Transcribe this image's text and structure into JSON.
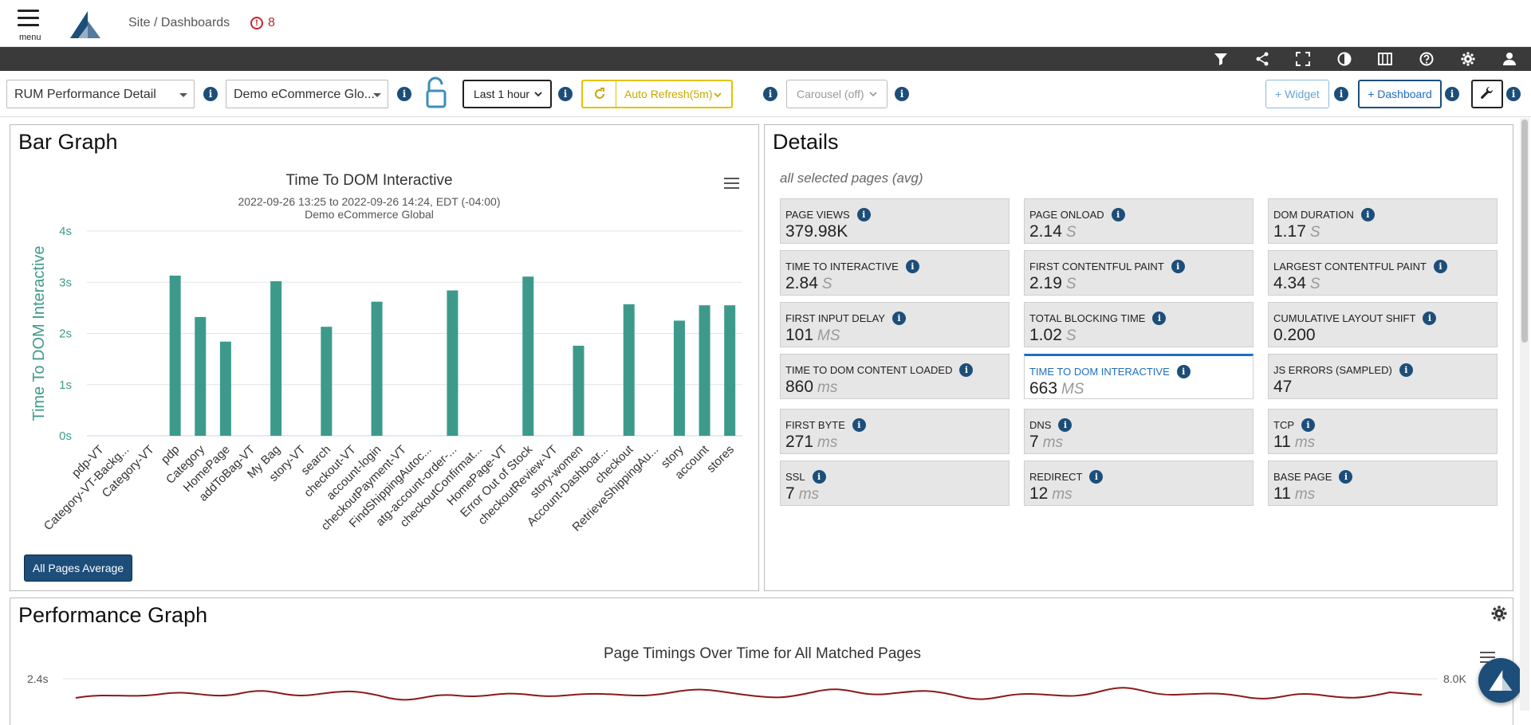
{
  "header": {
    "menu_label": "menu",
    "breadcrumb": "Site / Dashboards",
    "alert_count": "8",
    "alert_icon": "!"
  },
  "toolbar_icons": [
    "filter-icon",
    "share-icon",
    "fullscreen-icon",
    "contrast-icon",
    "columns-icon",
    "help-icon",
    "gear-icon",
    "user-icon"
  ],
  "controls": {
    "dashboard_select": "RUM Performance Detail",
    "site_select": "Demo eCommerce Glo...",
    "time_range": "Last 1 hour",
    "auto_refresh": "Auto Refresh(5m)",
    "carousel": "Carousel (off)",
    "add_widget": "+ Widget",
    "add_dashboard": "+ Dashboard",
    "info": "i"
  },
  "bar_panel": {
    "heading": "Bar Graph",
    "chart_title": "Time To DOM Interactive",
    "date_range": "2022-09-26 13:25 to 2022-09-26 14:24, EDT (-04:00)",
    "site": "Demo eCommerce Global",
    "button": "All Pages Average"
  },
  "chart_data": {
    "type": "bar",
    "title": "Time To DOM Interactive",
    "subtitle": "2022-09-26 13:25 to 2022-09-26 14:24, EDT (-04:00)",
    "ylabel": "Time To DOM Interactive",
    "ylim": [
      0,
      4
    ],
    "yticks": [
      "0s",
      "1s",
      "2s",
      "3s",
      "4s"
    ],
    "categories": [
      "pdp-VT",
      "Category-VT-Backg...",
      "Category-VT",
      "pdp",
      "Category",
      "HomePage",
      "addToBag-VT",
      "My Bag",
      "story-VT",
      "search",
      "checkout-VT",
      "account-login",
      "checkoutPayment-VT",
      "FindShippingAutoc...",
      "atg-account-order-...",
      "checkoutConfirmat...",
      "HomePage-VT",
      "Error Out of Stock",
      "checkoutReview-VT",
      "story-women",
      "Account-Dashboar...",
      "checkout",
      "RetrieveShippingAu...",
      "story",
      "account",
      "stores"
    ],
    "values": [
      0,
      0,
      0,
      3.13,
      2.32,
      1.84,
      0,
      3.02,
      0,
      2.13,
      0,
      2.62,
      0,
      0,
      2.84,
      0,
      0,
      3.11,
      0,
      1.76,
      0,
      2.57,
      0,
      2.25,
      2.55,
      2.55
    ],
    "color": "#3d9a8b",
    "grid": true
  },
  "details_panel": {
    "heading": "Details",
    "subtitle": "all selected pages (avg)",
    "metrics": [
      {
        "label": "PAGE VIEWS",
        "value": "379.98K",
        "unit": ""
      },
      {
        "label": "PAGE ONLOAD",
        "value": "2.14",
        "unit": "S"
      },
      {
        "label": "DOM DURATION",
        "value": "1.17",
        "unit": "S"
      },
      {
        "label": "TIME TO INTERACTIVE",
        "value": "2.84",
        "unit": "S"
      },
      {
        "label": "FIRST CONTENTFUL PAINT",
        "value": "2.19",
        "unit": "S"
      },
      {
        "label": "LARGEST CONTENTFUL PAINT",
        "value": "4.34",
        "unit": "S"
      },
      {
        "label": "FIRST INPUT DELAY",
        "value": "101",
        "unit": "MS"
      },
      {
        "label": "TOTAL BLOCKING TIME",
        "value": "1.02",
        "unit": "S"
      },
      {
        "label": "CUMULATIVE LAYOUT SHIFT",
        "value": "0.200",
        "unit": ""
      },
      {
        "label": "TIME TO DOM CONTENT LOADED",
        "value": "860",
        "unit": "ms"
      },
      {
        "label": "TIME TO DOM INTERACTIVE",
        "value": "663",
        "unit": "MS"
      },
      {
        "label": "JS ERRORS (SAMPLED)",
        "value": "47",
        "unit": ""
      },
      {
        "label": "FIRST BYTE",
        "value": "271",
        "unit": "ms"
      },
      {
        "label": "DNS",
        "value": "7",
        "unit": "ms"
      },
      {
        "label": "TCP",
        "value": "11",
        "unit": "ms"
      },
      {
        "label": "SSL",
        "value": "7",
        "unit": "ms"
      },
      {
        "label": "REDIRECT",
        "value": "12",
        "unit": "ms"
      },
      {
        "label": "BASE PAGE",
        "value": "11",
        "unit": "ms"
      }
    ]
  },
  "perf_panel": {
    "heading": "Performance Graph",
    "chart_title": "Page Timings Over Time for All Matched Pages",
    "left_tick": "2.4s",
    "right_tick": "8.0K",
    "line_color": "#8b1a1a"
  }
}
